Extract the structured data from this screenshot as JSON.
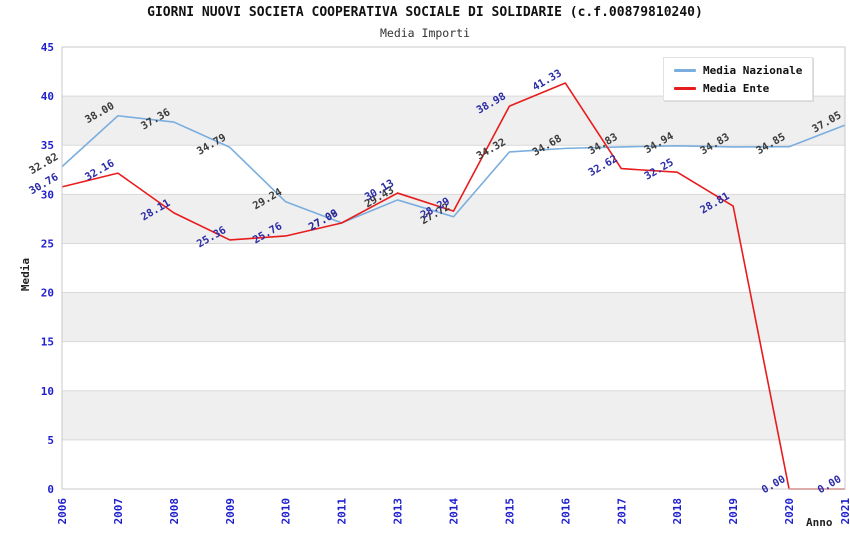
{
  "header": {
    "title": "GIORNI NUOVI SOCIETA COOPERATIVA SOCIALE DI SOLIDARIE (c.f.00879810240)",
    "subtitle": "Media Importi"
  },
  "legend": {
    "position": "top-right",
    "items": [
      {
        "label": "Media Nazionale",
        "color": "#7aaede"
      },
      {
        "label": "Media Ente",
        "color": "#e81c1c"
      }
    ]
  },
  "chart_data": {
    "type": "line",
    "title": "GIORNI NUOVI SOCIETA COOPERATIVA SOCIALE DI SOLIDARIE (c.f.00879810240)",
    "subtitle": "Media Importi",
    "xlabel": "Anno",
    "ylabel": "Media",
    "categories": [
      "2006",
      "2007",
      "2008",
      "2009",
      "2010",
      "2011",
      "2013",
      "2014",
      "2015",
      "2016",
      "2017",
      "2018",
      "2019",
      "2020",
      "2021"
    ],
    "series": [
      {
        "name": "Media Nazionale",
        "color": "#7aaede",
        "label_color": "#3a3a3a",
        "values": [
          32.82,
          38.0,
          37.36,
          34.79,
          29.24,
          27.09,
          29.43,
          27.72,
          34.32,
          34.68,
          34.83,
          34.94,
          34.83,
          34.85,
          37.05
        ]
      },
      {
        "name": "Media Ente",
        "color": "#e81c1c",
        "label_color": "#2b2ba8",
        "values": [
          30.76,
          32.16,
          28.11,
          25.36,
          25.76,
          27.08,
          30.13,
          28.29,
          38.98,
          41.33,
          32.62,
          32.25,
          28.81,
          0.0,
          0.0
        ]
      }
    ],
    "ylim": [
      0,
      45
    ],
    "yticks": [
      0,
      5,
      10,
      15,
      20,
      25,
      30,
      35,
      40,
      45
    ],
    "grid": true,
    "legend_position": "top-right",
    "tick_color": "#1f1fd0",
    "band_colors": [
      "#ffffff",
      "#efefef"
    ],
    "grid_color": "#d9d9d9",
    "border_color": "#c9c9c9",
    "point_label_decimals": 2,
    "point_label_rotation": -30
  }
}
